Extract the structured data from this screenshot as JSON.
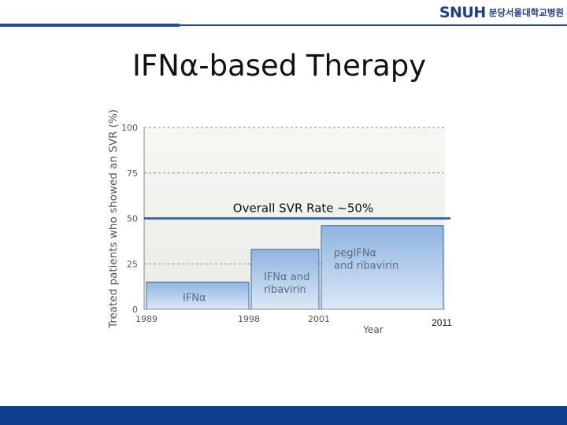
{
  "header": {
    "logo_text": "SNUH",
    "logo_subtitle": "분당서울대학교병원",
    "accent": "#1f4e9c",
    "footer_color": "#0d3d8c"
  },
  "slide": {
    "title": "IFNα-based Therapy"
  },
  "chart_data": {
    "type": "bar",
    "xlabel": "Year",
    "ylabel": "Treated patients who showed an SVR (%)",
    "ylim": [
      0,
      100
    ],
    "yticks": [
      "0",
      "25",
      "50",
      "75",
      "100"
    ],
    "x_ticks": [
      "1989",
      "1998",
      "2001",
      "2011"
    ],
    "bars": [
      {
        "label": "IFNα",
        "start_year": 1989,
        "end_year": 1998,
        "value": 15
      },
      {
        "label": "IFNα and ribavirin",
        "line1": "IFNα and",
        "line2": "ribavirin",
        "start_year": 1998,
        "end_year": 2001,
        "value": 33
      },
      {
        "label": "pegIFNα and ribavirin",
        "line1": "pegIFNα",
        "line2": "and ribavirin",
        "start_year": 2001,
        "end_year": 2011,
        "value": 46
      }
    ],
    "reference_line": {
      "value": 50,
      "label": "Overall SVR Rate ~50%"
    },
    "grid": true,
    "colors": {
      "plot_bg": "#f0f0ec",
      "bar_fill": "#a9c6e8",
      "bar_fill_light": "#d6e5f5",
      "bar_stroke": "#3a6ea8",
      "ref_line": "#3a6ea8"
    }
  }
}
